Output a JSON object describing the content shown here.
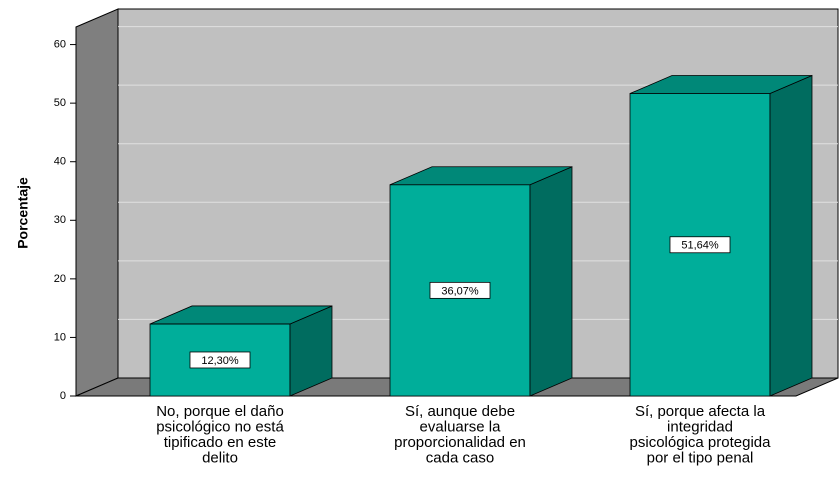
{
  "chart_data": {
    "type": "bar3d",
    "categories": [
      [
        "No, porque el daño",
        "psicológico no está",
        "tipificado en este",
        "delito"
      ],
      [
        "Sí, aunque debe",
        "evaluarse la",
        "proporcionalidad en",
        "cada caso"
      ],
      [
        "Sí, porque afecta la",
        "integridad",
        "psicológica protegida",
        "por el tipo penal"
      ]
    ],
    "values": [
      12.3,
      36.07,
      51.64
    ],
    "value_labels": [
      "12,30%",
      "36,07%",
      "51,64%"
    ],
    "y_label": "Porcentaje",
    "color": "#00ae9a",
    "ylim": [
      0,
      63
    ],
    "yticks": [
      0,
      10,
      20,
      30,
      40,
      50,
      60
    ],
    "grid": true
  }
}
